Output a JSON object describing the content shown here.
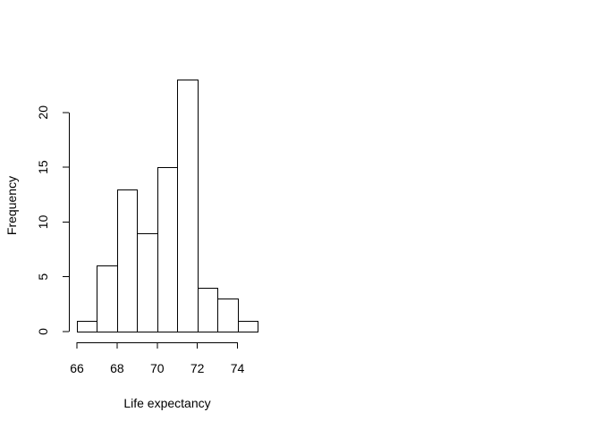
{
  "chart_data": {
    "type": "bar",
    "title": "",
    "xlabel": "Life expectancy",
    "ylabel": "Frequency",
    "bin_edges": [
      66,
      67,
      68,
      69,
      70,
      71,
      72,
      73,
      74,
      75
    ],
    "values": [
      1,
      6,
      13,
      9,
      15,
      23,
      4,
      3,
      1
    ],
    "x_ticks": [
      "66",
      "68",
      "70",
      "72",
      "74"
    ],
    "y_ticks": [
      "0",
      "5",
      "10",
      "15",
      "20"
    ],
    "ylim": [
      0,
      23
    ],
    "grid": false,
    "colors": {
      "bar_fill": "#ffffff",
      "bar_stroke": "#000000"
    }
  }
}
